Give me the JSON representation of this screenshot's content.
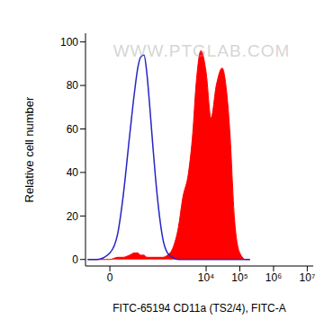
{
  "chart_data": {
    "type": "area",
    "xlabel": "FITC-65194 CD11a (TS2/4), FITC-A",
    "ylabel": "Relative cell number",
    "annotations": [
      "WWW.PTGLAB.COM"
    ],
    "log": "x",
    "grid": false,
    "x": [
      -50,
      -20,
      0,
      10,
      20,
      40,
      60,
      80,
      100,
      130,
      160,
      200,
      250,
      300,
      400,
      500,
      700,
      1000,
      1500,
      2000,
      3000,
      4000,
      5000,
      7000,
      10000,
      14000,
      20000,
      30000,
      40000,
      50000,
      70000,
      100000,
      150000,
      200000
    ],
    "series": [
      {
        "type": "area",
        "color": "#ff0000",
        "values": [
          0,
          0,
          0,
          1,
          1,
          2,
          3,
          3,
          2,
          2,
          1,
          1,
          1,
          1,
          1,
          1,
          2,
          5,
          15,
          28,
          40,
          58,
          80,
          96,
          86,
          65,
          80,
          88,
          78,
          60,
          18,
          3,
          0,
          0
        ]
      },
      {
        "type": "line",
        "color": "#2424c8",
        "values": [
          0,
          0,
          3,
          12,
          28,
          57,
          76,
          88,
          93,
          94,
          86,
          70,
          52,
          38,
          20,
          10,
          3,
          1,
          0,
          0,
          0,
          0,
          0,
          0,
          0,
          0,
          0,
          0,
          0,
          0,
          0,
          0,
          0,
          0
        ]
      }
    ],
    "xlim": [
      -60,
      15000000
    ],
    "xticks": [
      0,
      {
        "value": 10000,
        "label": "10⁴"
      },
      {
        "value": 100000,
        "label": "10⁵"
      },
      {
        "value": 1000000,
        "label": "10⁶"
      },
      {
        "value": 10000000,
        "label": "10⁷"
      }
    ],
    "ylim": [
      -3,
      104
    ],
    "yticks": [
      0,
      20,
      40,
      60,
      80,
      100
    ]
  }
}
